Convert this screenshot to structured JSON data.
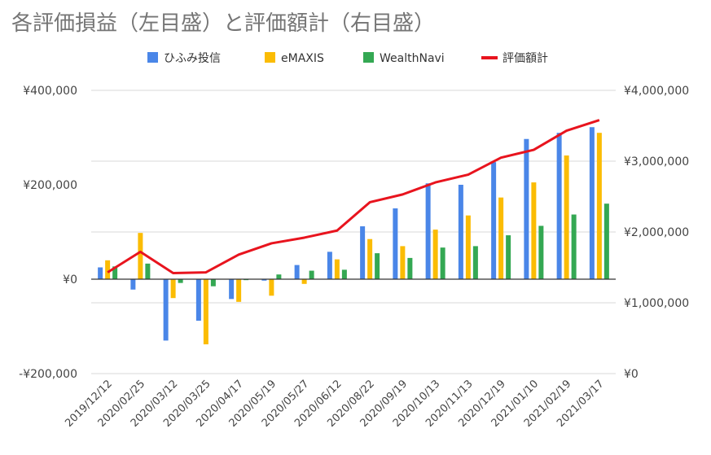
{
  "chart_data": {
    "type": "bar",
    "title": "各評価損益（左目盛）と評価額計（右目盛）",
    "categories": [
      "2019/12/12",
      "2020/02/25",
      "2020/03/12",
      "2020/03/25",
      "2020/04/17",
      "2020/05/19",
      "2020/05/27",
      "2020/06/12",
      "2020/08/22",
      "2020/09/19",
      "2020/10/13",
      "2020/11/13",
      "2020/12/19",
      "2021/01/10",
      "2021/02/19",
      "2021/03/17"
    ],
    "series": [
      {
        "name": "ひふみ投信",
        "type": "bar",
        "axis": "left",
        "color": "#4a86e8",
        "values": [
          25000,
          -22000,
          -130000,
          -88000,
          -42000,
          -3000,
          30000,
          58000,
          112000,
          150000,
          203000,
          200000,
          248000,
          297000,
          310000,
          322000
        ]
      },
      {
        "name": "eMAXIS",
        "type": "bar",
        "axis": "left",
        "color": "#fbbc04",
        "values": [
          40000,
          98000,
          -40000,
          -138000,
          -48000,
          -35000,
          -10000,
          42000,
          85000,
          70000,
          105000,
          135000,
          173000,
          205000,
          262000,
          310000
        ]
      },
      {
        "name": "WealthNavi",
        "type": "bar",
        "axis": "left",
        "color": "#34a853",
        "values": [
          27000,
          33000,
          -8000,
          -15000,
          -2000,
          10000,
          18000,
          20000,
          55000,
          45000,
          67000,
          70000,
          93000,
          113000,
          137000,
          160000
        ]
      },
      {
        "name": "評価額計",
        "type": "line",
        "axis": "right",
        "color": "#e8141e",
        "values": [
          1430000,
          1720000,
          1420000,
          1430000,
          1680000,
          1840000,
          1920000,
          2020000,
          2420000,
          2530000,
          2700000,
          2810000,
          3050000,
          3160000,
          3430000,
          3580000
        ]
      }
    ],
    "y_left": {
      "min": -200000,
      "max": 400000,
      "ticks": [
        -200000,
        0,
        200000,
        400000
      ],
      "tick_labels": [
        "-¥200,000",
        "¥0",
        "¥200,000",
        "¥400,000"
      ]
    },
    "y_right": {
      "min": 0,
      "max": 4000000,
      "ticks": [
        0,
        1000000,
        2000000,
        3000000,
        4000000
      ],
      "tick_labels": [
        "¥0",
        "¥1,000,000",
        "¥2,000,000",
        "¥3,000,000",
        "¥4,000,000"
      ]
    },
    "grid": true,
    "legend": "top"
  }
}
